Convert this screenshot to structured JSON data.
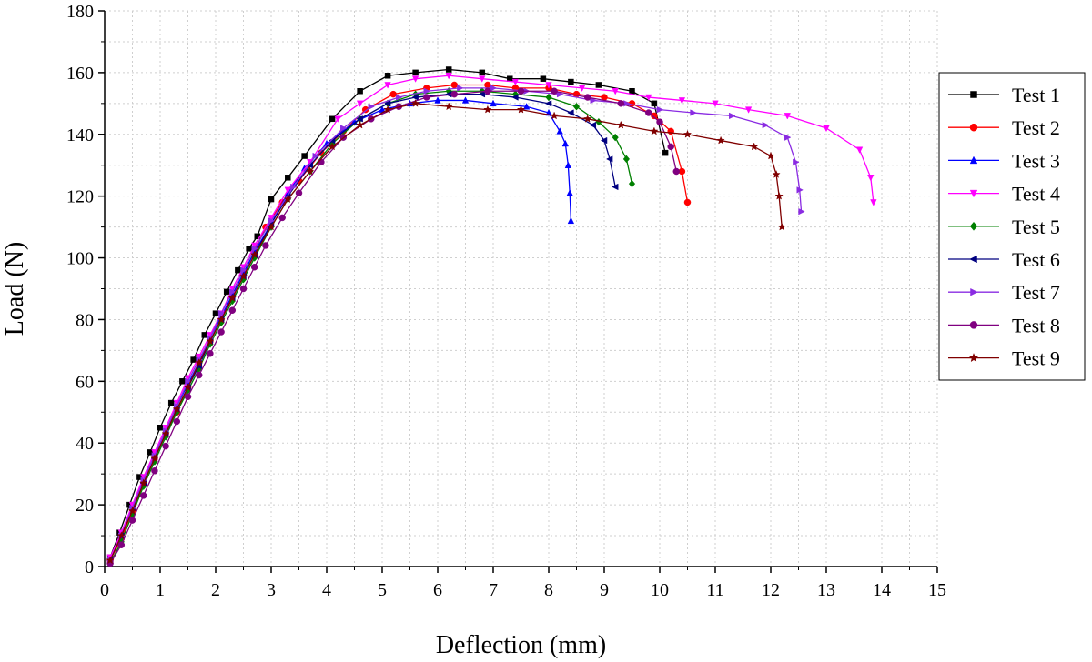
{
  "chart_data": {
    "type": "line",
    "xlabel": "Deflection (mm)",
    "ylabel": "Load (N)",
    "xlim": [
      0,
      15
    ],
    "ylim": [
      0,
      180
    ],
    "xticks": [
      "0",
      "1",
      "2",
      "3",
      "4",
      "5",
      "6",
      "7",
      "8",
      "9",
      "10",
      "11",
      "12",
      "13",
      "14",
      "15"
    ],
    "yticks": [
      "0",
      "20",
      "40",
      "60",
      "80",
      "100",
      "120",
      "140",
      "160",
      "180"
    ],
    "grid": true,
    "legend_position": "right",
    "series": [
      {
        "name": "Test 1",
        "color": "#000000",
        "marker": "square",
        "points": [
          [
            0.1,
            3
          ],
          [
            0.27,
            11
          ],
          [
            0.45,
            20
          ],
          [
            0.63,
            29
          ],
          [
            0.82,
            37
          ],
          [
            1.0,
            45
          ],
          [
            1.2,
            53
          ],
          [
            1.4,
            60
          ],
          [
            1.6,
            67
          ],
          [
            1.8,
            75
          ],
          [
            2.0,
            82
          ],
          [
            2.2,
            89
          ],
          [
            2.4,
            96
          ],
          [
            2.6,
            103
          ],
          [
            2.75,
            107
          ],
          [
            3.0,
            119
          ],
          [
            3.3,
            126
          ],
          [
            3.6,
            133
          ],
          [
            4.1,
            145
          ],
          [
            4.6,
            154
          ],
          [
            5.1,
            159
          ],
          [
            5.6,
            160
          ],
          [
            6.2,
            161
          ],
          [
            6.8,
            160
          ],
          [
            7.3,
            158
          ],
          [
            7.9,
            158
          ],
          [
            8.4,
            157
          ],
          [
            8.9,
            156
          ],
          [
            9.5,
            154
          ],
          [
            9.9,
            150
          ],
          [
            10.1,
            134
          ]
        ]
      },
      {
        "name": "Test 2",
        "color": "#ff0000",
        "marker": "circle",
        "points": [
          [
            0.1,
            2
          ],
          [
            0.3,
            9
          ],
          [
            0.5,
            18
          ],
          [
            0.7,
            27
          ],
          [
            0.9,
            35
          ],
          [
            1.1,
            43
          ],
          [
            1.3,
            50
          ],
          [
            1.5,
            58
          ],
          [
            1.7,
            66
          ],
          [
            1.9,
            73
          ],
          [
            2.1,
            80
          ],
          [
            2.3,
            88
          ],
          [
            2.5,
            95
          ],
          [
            2.7,
            102
          ],
          [
            2.9,
            110
          ],
          [
            3.2,
            118
          ],
          [
            3.5,
            125
          ],
          [
            3.9,
            134
          ],
          [
            4.3,
            141
          ],
          [
            4.7,
            148
          ],
          [
            5.2,
            153
          ],
          [
            5.8,
            155
          ],
          [
            6.3,
            156
          ],
          [
            6.9,
            156
          ],
          [
            7.4,
            155
          ],
          [
            8.0,
            155
          ],
          [
            8.5,
            153
          ],
          [
            9.0,
            152
          ],
          [
            9.5,
            150
          ],
          [
            9.9,
            146
          ],
          [
            10.2,
            141
          ],
          [
            10.4,
            128
          ],
          [
            10.5,
            118
          ]
        ]
      },
      {
        "name": "Test 3",
        "color": "#0000ff",
        "marker": "triangle-up",
        "points": [
          [
            0.1,
            2
          ],
          [
            0.3,
            10
          ],
          [
            0.5,
            19
          ],
          [
            0.7,
            28
          ],
          [
            0.9,
            36
          ],
          [
            1.1,
            44
          ],
          [
            1.3,
            52
          ],
          [
            1.5,
            59
          ],
          [
            1.7,
            66
          ],
          [
            1.9,
            74
          ],
          [
            2.1,
            81
          ],
          [
            2.3,
            88
          ],
          [
            2.5,
            95
          ],
          [
            2.7,
            102
          ],
          [
            3.0,
            111
          ],
          [
            3.3,
            121
          ],
          [
            3.6,
            129
          ],
          [
            4.0,
            137
          ],
          [
            4.5,
            144
          ],
          [
            5.0,
            148
          ],
          [
            5.5,
            150
          ],
          [
            6.0,
            151
          ],
          [
            6.5,
            151
          ],
          [
            7.0,
            150
          ],
          [
            7.6,
            149
          ],
          [
            8.0,
            147
          ],
          [
            8.2,
            141
          ],
          [
            8.3,
            137
          ],
          [
            8.35,
            130
          ],
          [
            8.38,
            121
          ],
          [
            8.4,
            112
          ]
        ]
      },
      {
        "name": "Test 4",
        "color": "#ff00ff",
        "marker": "triangle-down",
        "points": [
          [
            0.1,
            3
          ],
          [
            0.3,
            11
          ],
          [
            0.5,
            20
          ],
          [
            0.7,
            29
          ],
          [
            0.9,
            37
          ],
          [
            1.1,
            45
          ],
          [
            1.3,
            53
          ],
          [
            1.5,
            61
          ],
          [
            1.7,
            68
          ],
          [
            1.9,
            75
          ],
          [
            2.1,
            82
          ],
          [
            2.3,
            90
          ],
          [
            2.5,
            97
          ],
          [
            2.7,
            104
          ],
          [
            3.0,
            113
          ],
          [
            3.3,
            122
          ],
          [
            3.7,
            131
          ],
          [
            4.2,
            145
          ],
          [
            4.6,
            150
          ],
          [
            5.1,
            156
          ],
          [
            5.6,
            158
          ],
          [
            6.2,
            159
          ],
          [
            6.8,
            158
          ],
          [
            7.4,
            157
          ],
          [
            8.0,
            156
          ],
          [
            8.6,
            155
          ],
          [
            9.2,
            154
          ],
          [
            9.8,
            152
          ],
          [
            10.4,
            151
          ],
          [
            11.0,
            150
          ],
          [
            11.6,
            148
          ],
          [
            12.3,
            146
          ],
          [
            13.0,
            142
          ],
          [
            13.6,
            135
          ],
          [
            13.8,
            126
          ],
          [
            13.85,
            118
          ]
        ]
      },
      {
        "name": "Test 5",
        "color": "#008000",
        "marker": "diamond",
        "points": [
          [
            0.1,
            1
          ],
          [
            0.3,
            8
          ],
          [
            0.5,
            17
          ],
          [
            0.7,
            26
          ],
          [
            0.9,
            34
          ],
          [
            1.1,
            42
          ],
          [
            1.3,
            50
          ],
          [
            1.5,
            57
          ],
          [
            1.7,
            64
          ],
          [
            1.9,
            72
          ],
          [
            2.1,
            79
          ],
          [
            2.3,
            86
          ],
          [
            2.5,
            93
          ],
          [
            2.7,
            100
          ],
          [
            3.0,
            110
          ],
          [
            3.3,
            119
          ],
          [
            3.7,
            128
          ],
          [
            4.1,
            137
          ],
          [
            4.6,
            145
          ],
          [
            5.1,
            150
          ],
          [
            5.6,
            153
          ],
          [
            6.2,
            154
          ],
          [
            6.8,
            154
          ],
          [
            7.4,
            153
          ],
          [
            8.0,
            152
          ],
          [
            8.5,
            149
          ],
          [
            8.9,
            144
          ],
          [
            9.2,
            139
          ],
          [
            9.4,
            132
          ],
          [
            9.5,
            124
          ]
        ]
      },
      {
        "name": "Test 6",
        "color": "#000080",
        "marker": "triangle-left",
        "points": [
          [
            0.1,
            2
          ],
          [
            0.3,
            10
          ],
          [
            0.5,
            19
          ],
          [
            0.7,
            27
          ],
          [
            0.9,
            35
          ],
          [
            1.1,
            43
          ],
          [
            1.3,
            51
          ],
          [
            1.5,
            58
          ],
          [
            1.7,
            65
          ],
          [
            1.9,
            73
          ],
          [
            2.1,
            80
          ],
          [
            2.3,
            87
          ],
          [
            2.5,
            94
          ],
          [
            2.7,
            101
          ],
          [
            3.0,
            111
          ],
          [
            3.3,
            120
          ],
          [
            3.7,
            130
          ],
          [
            4.1,
            138
          ],
          [
            4.6,
            145
          ],
          [
            5.1,
            150
          ],
          [
            5.6,
            152
          ],
          [
            6.2,
            153
          ],
          [
            6.8,
            153
          ],
          [
            7.4,
            152
          ],
          [
            8.0,
            150
          ],
          [
            8.4,
            147
          ],
          [
            8.8,
            143
          ],
          [
            9.0,
            138
          ],
          [
            9.1,
            132
          ],
          [
            9.2,
            123
          ]
        ]
      },
      {
        "name": "Test 7",
        "color": "#8a2be2",
        "marker": "triangle-right",
        "points": [
          [
            0.1,
            2
          ],
          [
            0.3,
            10
          ],
          [
            0.5,
            19
          ],
          [
            0.7,
            28
          ],
          [
            0.9,
            36
          ],
          [
            1.1,
            44
          ],
          [
            1.3,
            52
          ],
          [
            1.5,
            60
          ],
          [
            1.7,
            67
          ],
          [
            1.9,
            74
          ],
          [
            2.1,
            82
          ],
          [
            2.3,
            89
          ],
          [
            2.5,
            96
          ],
          [
            2.7,
            103
          ],
          [
            3.0,
            112
          ],
          [
            3.4,
            123
          ],
          [
            3.8,
            133
          ],
          [
            4.3,
            142
          ],
          [
            4.8,
            149
          ],
          [
            5.3,
            152
          ],
          [
            5.8,
            154
          ],
          [
            6.4,
            155
          ],
          [
            7.0,
            155
          ],
          [
            7.6,
            154
          ],
          [
            8.2,
            153
          ],
          [
            8.8,
            151
          ],
          [
            9.4,
            150
          ],
          [
            10.0,
            148
          ],
          [
            10.6,
            147
          ],
          [
            11.3,
            146
          ],
          [
            11.9,
            143
          ],
          [
            12.3,
            139
          ],
          [
            12.45,
            131
          ],
          [
            12.52,
            122
          ],
          [
            12.55,
            115
          ]
        ]
      },
      {
        "name": "Test 8",
        "color": "#800080",
        "marker": "circle",
        "points": [
          [
            0.1,
            1
          ],
          [
            0.3,
            7
          ],
          [
            0.5,
            15
          ],
          [
            0.7,
            23
          ],
          [
            0.9,
            31
          ],
          [
            1.1,
            39
          ],
          [
            1.3,
            47
          ],
          [
            1.5,
            55
          ],
          [
            1.7,
            62
          ],
          [
            1.9,
            69
          ],
          [
            2.1,
            76
          ],
          [
            2.3,
            83
          ],
          [
            2.5,
            90
          ],
          [
            2.7,
            97
          ],
          [
            2.9,
            104
          ],
          [
            3.2,
            113
          ],
          [
            3.5,
            121
          ],
          [
            3.9,
            131
          ],
          [
            4.3,
            139
          ],
          [
            4.8,
            145
          ],
          [
            5.3,
            149
          ],
          [
            5.8,
            152
          ],
          [
            6.3,
            153
          ],
          [
            6.9,
            154
          ],
          [
            7.5,
            154
          ],
          [
            8.1,
            154
          ],
          [
            8.7,
            152
          ],
          [
            9.3,
            150
          ],
          [
            9.8,
            147
          ],
          [
            10.0,
            144
          ],
          [
            10.2,
            136
          ],
          [
            10.3,
            128
          ]
        ]
      },
      {
        "name": "Test 9",
        "color": "#800000",
        "marker": "star",
        "points": [
          [
            0.1,
            2
          ],
          [
            0.3,
            10
          ],
          [
            0.5,
            18
          ],
          [
            0.7,
            27
          ],
          [
            0.9,
            35
          ],
          [
            1.1,
            43
          ],
          [
            1.3,
            51
          ],
          [
            1.5,
            58
          ],
          [
            1.7,
            66
          ],
          [
            1.9,
            73
          ],
          [
            2.1,
            80
          ],
          [
            2.3,
            87
          ],
          [
            2.5,
            94
          ],
          [
            2.7,
            101
          ],
          [
            3.0,
            110
          ],
          [
            3.3,
            119
          ],
          [
            3.7,
            128
          ],
          [
            4.1,
            136
          ],
          [
            4.6,
            143
          ],
          [
            5.1,
            148
          ],
          [
            5.6,
            150
          ],
          [
            6.2,
            149
          ],
          [
            6.9,
            148
          ],
          [
            7.5,
            148
          ],
          [
            8.1,
            146
          ],
          [
            8.7,
            145
          ],
          [
            9.3,
            143
          ],
          [
            9.9,
            141
          ],
          [
            10.5,
            140
          ],
          [
            11.1,
            138
          ],
          [
            11.7,
            136
          ],
          [
            12.0,
            133
          ],
          [
            12.1,
            127
          ],
          [
            12.15,
            120
          ],
          [
            12.2,
            110
          ]
        ]
      }
    ]
  }
}
